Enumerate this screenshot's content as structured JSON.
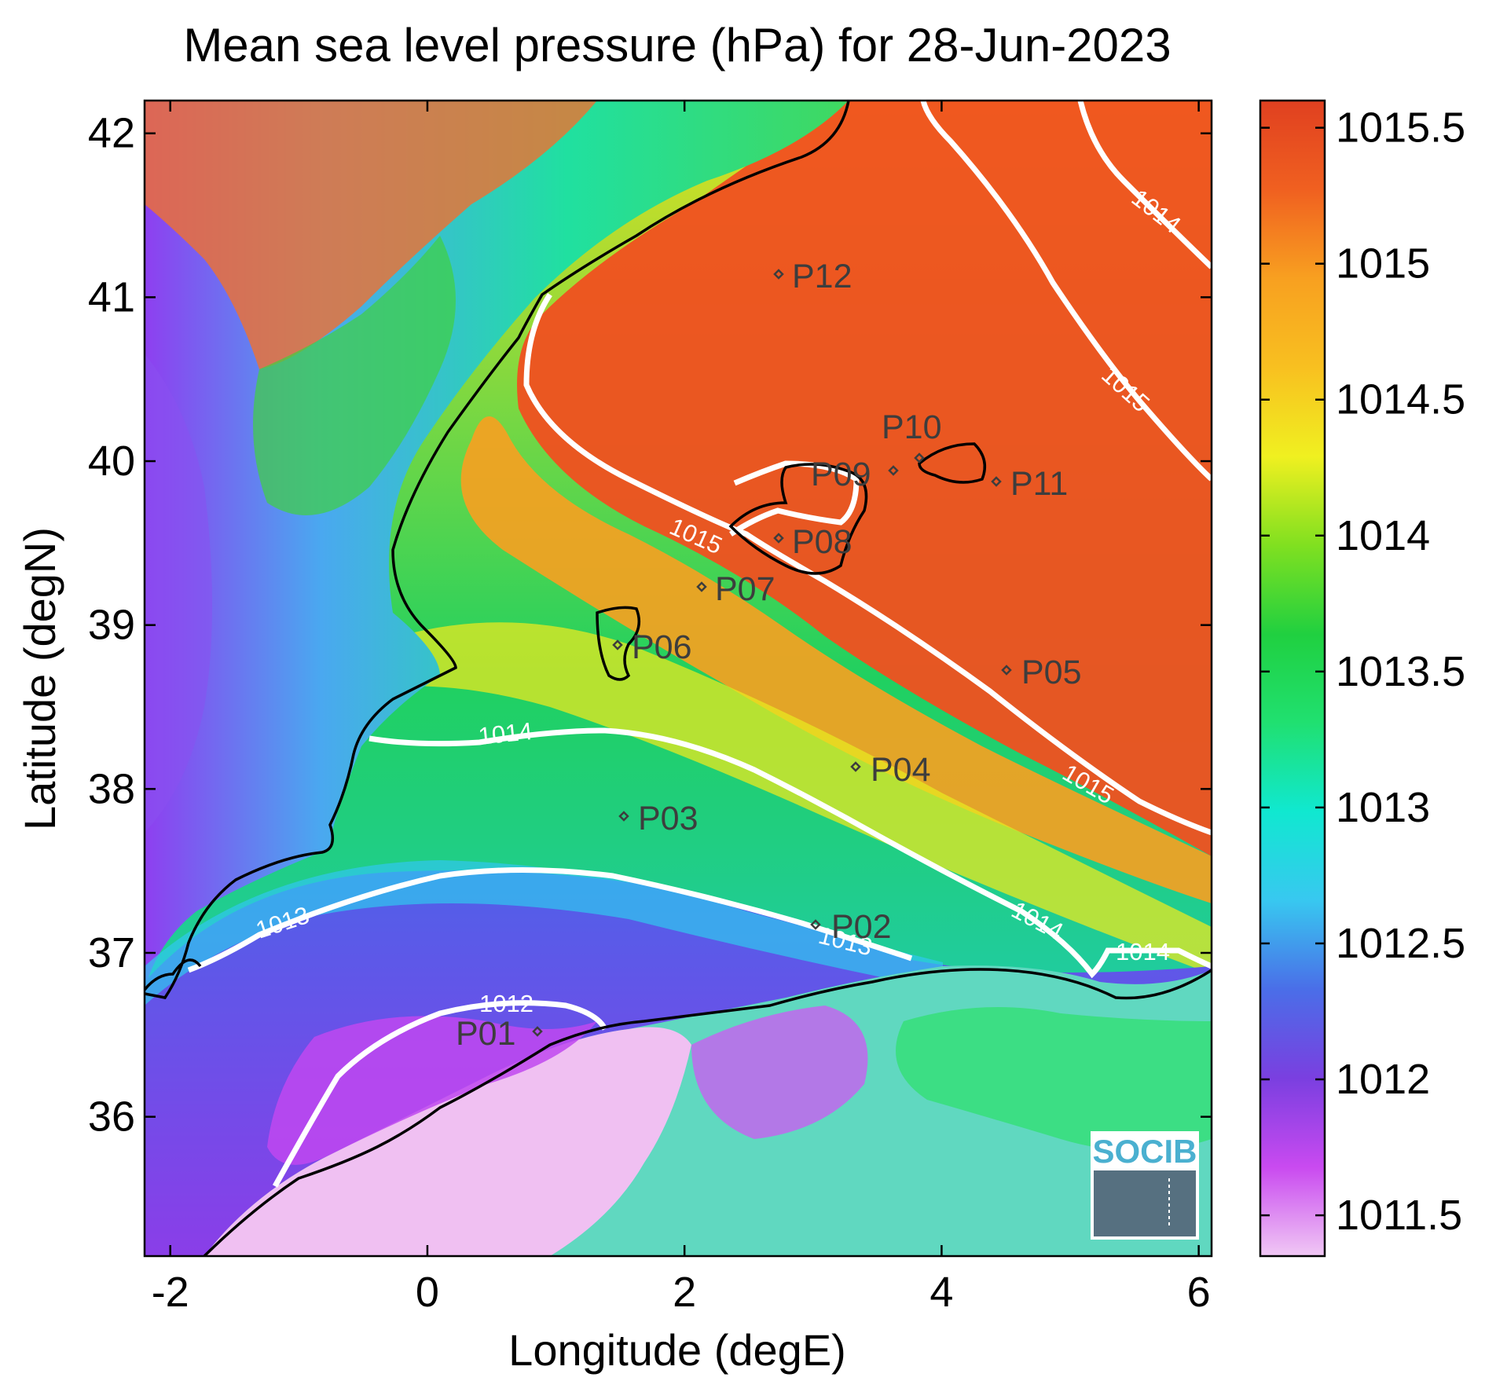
{
  "title": "Mean sea level pressure (hPa) for 28-Jun-2023",
  "xlabel": "Longitude (degE)",
  "ylabel": "Latitude (degN)",
  "logo_text": "SOCIB",
  "chart_data": {
    "type": "heatmap",
    "title": "Mean sea level pressure (hPa) for 28-Jun-2023",
    "xlabel": "Longitude (degE)",
    "ylabel": "Latitude (degN)",
    "xlim": [
      -2.2,
      6.1
    ],
    "ylim": [
      35.15,
      42.2
    ],
    "xticks": [
      {
        "value": -2,
        "label": "-2"
      },
      {
        "value": 0,
        "label": "0"
      },
      {
        "value": 2,
        "label": "2"
      },
      {
        "value": 4,
        "label": "4"
      },
      {
        "value": 6,
        "label": "6"
      }
    ],
    "yticks": [
      {
        "value": 36,
        "label": "36"
      },
      {
        "value": 37,
        "label": "37"
      },
      {
        "value": 38,
        "label": "38"
      },
      {
        "value": 39,
        "label": "39"
      },
      {
        "value": 40,
        "label": "40"
      },
      {
        "value": 41,
        "label": "41"
      },
      {
        "value": 42,
        "label": "42"
      }
    ],
    "colorbar": {
      "range": [
        1011.35,
        1015.6
      ],
      "ticks": [
        {
          "value": 1011.5,
          "label": "1011.5"
        },
        {
          "value": 1012,
          "label": "1012"
        },
        {
          "value": 1012.5,
          "label": "1012.5"
        },
        {
          "value": 1013,
          "label": "1013"
        },
        {
          "value": 1013.5,
          "label": "1013.5"
        },
        {
          "value": 1014,
          "label": "1014"
        },
        {
          "value": 1014.5,
          "label": "1014.5"
        },
        {
          "value": 1015,
          "label": "1015"
        },
        {
          "value": 1015.5,
          "label": "1015.5"
        }
      ],
      "colors": [
        "#f0c8f4",
        "#c94af0",
        "#7a3fe0",
        "#4a6ee8",
        "#38c8f0",
        "#10e8d0",
        "#20e070",
        "#20d040",
        "#80e020",
        "#f0f020",
        "#f8c020",
        "#f8a020",
        "#f06020",
        "#e04020"
      ]
    },
    "stations": [
      {
        "name": "P01",
        "lon": 0.82,
        "lat": 36.51
      },
      {
        "name": "P02",
        "lon": 2.98,
        "lat": 37.12
      },
      {
        "name": "P03",
        "lon": 1.5,
        "lat": 37.8
      },
      {
        "name": "P04",
        "lon": 3.3,
        "lat": 38.1
      },
      {
        "name": "P05",
        "lon": 4.47,
        "lat": 38.7
      },
      {
        "name": "P06",
        "lon": 1.45,
        "lat": 38.85
      },
      {
        "name": "P07",
        "lon": 2.1,
        "lat": 39.2
      },
      {
        "name": "P08",
        "lon": 2.7,
        "lat": 39.5
      },
      {
        "name": "P09",
        "lon": 3.6,
        "lat": 39.9
      },
      {
        "name": "P10",
        "lon": 3.8,
        "lat": 40.0
      },
      {
        "name": "P11",
        "lon": 4.4,
        "lat": 39.85
      },
      {
        "name": "P12",
        "lon": 2.7,
        "lat": 41.1
      }
    ],
    "contour_levels": [
      {
        "level": "1012",
        "label": "1012"
      },
      {
        "level": "1013",
        "label": "1013"
      },
      {
        "level": "1014",
        "label": "1014"
      },
      {
        "level": "1015",
        "label": "1015"
      }
    ]
  }
}
